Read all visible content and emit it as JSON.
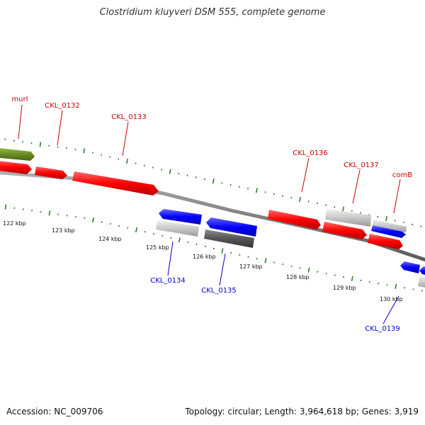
{
  "title": "Clostridium kluyveri DSM 555, complete genome",
  "accession": "Accession: NC_009706",
  "summary": "Topology: circular; Length: 3,964,618 bp; Genes: 3,919",
  "colors": {
    "backbone": "#808080",
    "tick": "#2e7d2e",
    "forward_label": "#cc0000",
    "reverse_label": "#0000cc",
    "red_gene": "#ff0000",
    "blue_gene": "#0000ff",
    "light_gray_gene": "#c8c8c8",
    "dark_gray_gene": "#555555",
    "olive_gene": "#6b8e23"
  },
  "scale_labels": [
    "122 kbp",
    "123 kbp",
    "124 kbp",
    "125 kbp",
    "126 kbp",
    "127 kbp",
    "128 kbp",
    "129 kbp",
    "130 kbp"
  ],
  "gene_labels": [
    {
      "name": "murI",
      "strand": "forward"
    },
    {
      "name": "CKL_0132",
      "strand": "forward"
    },
    {
      "name": "CKL_0133",
      "strand": "forward"
    },
    {
      "name": "CKL_0136",
      "strand": "forward"
    },
    {
      "name": "CKL_0137",
      "strand": "forward"
    },
    {
      "name": "comB",
      "strand": "forward"
    },
    {
      "name": "CKL_0134",
      "strand": "reverse"
    },
    {
      "name": "CKL_0135",
      "strand": "reverse"
    },
    {
      "name": "CKL_0139",
      "strand": "reverse"
    }
  ]
}
